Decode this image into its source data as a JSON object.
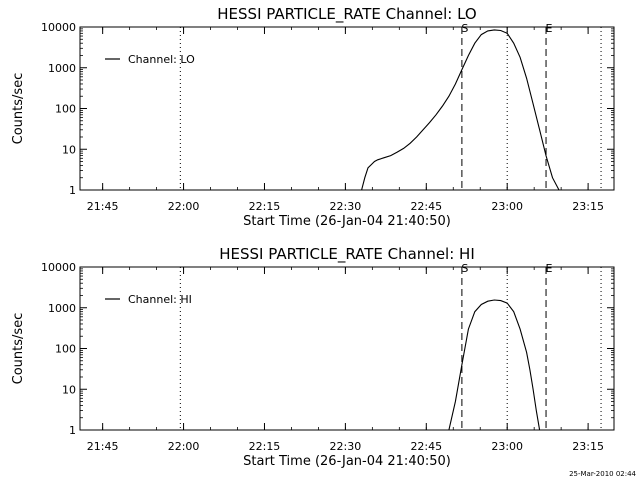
{
  "footer": {
    "timestamp": "25-Mar-2010 02:44"
  },
  "chart_data": [
    {
      "type": "line",
      "title": "HESSI PARTICLE_RATE Channel: LO",
      "xlabel": "Start Time (26-Jan-04 21:40:50)",
      "ylabel": "Counts/sec",
      "y_scale": "log",
      "xlim": [
        21.68,
        23.33
      ],
      "ylim": [
        1,
        10000
      ],
      "x_ticks": [
        "21:45",
        "22:00",
        "22:15",
        "22:30",
        "22:45",
        "23:00",
        "23:15"
      ],
      "x_tick_values": [
        21.75,
        22.0,
        22.25,
        22.5,
        22.75,
        23.0,
        23.25
      ],
      "y_ticks": [
        "1",
        "10",
        "100",
        "1000",
        "10000"
      ],
      "y_tick_values": [
        1,
        10,
        100,
        1000,
        10000
      ],
      "legend": {
        "label": "Channel: LO",
        "position": "top-left"
      },
      "markers": [
        {
          "label": "S",
          "x": 22.86,
          "style": "dashed"
        },
        {
          "label": "E",
          "x": 23.12,
          "style": "dashed"
        },
        {
          "label": "",
          "x": 21.99,
          "style": "dotted"
        },
        {
          "label": "",
          "x": 23.0,
          "style": "dotted"
        },
        {
          "label": "",
          "x": 23.29,
          "style": "dotted"
        }
      ],
      "series": [
        {
          "x": [
            22.55,
            22.56,
            22.57,
            22.58,
            22.59,
            22.6,
            22.62,
            22.64,
            22.66,
            22.68,
            22.7,
            22.72,
            22.74,
            22.76,
            22.78,
            22.8,
            22.82,
            22.84,
            22.86,
            22.88,
            22.9,
            22.92,
            22.94,
            22.96,
            22.98,
            23.0,
            23.02,
            23.04,
            23.06,
            23.08,
            23.1,
            23.12,
            23.14,
            23.16
          ],
          "y": [
            1.0,
            2.0,
            3.5,
            4.2,
            5.0,
            5.5,
            6.2,
            7.0,
            8.5,
            10.5,
            14,
            20,
            30,
            45,
            70,
            115,
            200,
            400,
            900,
            2000,
            4000,
            6500,
            8000,
            8500,
            8200,
            7000,
            4000,
            1800,
            550,
            130,
            30,
            7,
            2,
            1.0
          ]
        }
      ]
    },
    {
      "type": "line",
      "title": "HESSI PARTICLE_RATE Channel: HI",
      "xlabel": "Start Time (26-Jan-04 21:40:50)",
      "ylabel": "Counts/sec",
      "y_scale": "log",
      "xlim": [
        21.68,
        23.33
      ],
      "ylim": [
        1,
        10000
      ],
      "x_ticks": [
        "21:45",
        "22:00",
        "22:15",
        "22:30",
        "22:45",
        "23:00",
        "23:15"
      ],
      "x_tick_values": [
        21.75,
        22.0,
        22.25,
        22.5,
        22.75,
        23.0,
        23.25
      ],
      "y_ticks": [
        "1",
        "10",
        "100",
        "1000",
        "10000"
      ],
      "y_tick_values": [
        1,
        10,
        100,
        1000,
        10000
      ],
      "legend": {
        "label": "Channel: HI",
        "position": "top-left"
      },
      "markers": [
        {
          "label": "S",
          "x": 22.86,
          "style": "dashed"
        },
        {
          "label": "E",
          "x": 23.12,
          "style": "dashed"
        },
        {
          "label": "",
          "x": 21.99,
          "style": "dotted"
        },
        {
          "label": "",
          "x": 23.0,
          "style": "dotted"
        },
        {
          "label": "",
          "x": 23.29,
          "style": "dotted"
        }
      ],
      "series": [
        {
          "x": [
            22.82,
            22.84,
            22.86,
            22.88,
            22.9,
            22.92,
            22.94,
            22.96,
            22.98,
            23.0,
            23.02,
            23.04,
            23.06,
            23.07,
            23.08,
            23.09,
            23.1
          ],
          "y": [
            1.0,
            5,
            40,
            300,
            800,
            1200,
            1450,
            1550,
            1500,
            1300,
            800,
            300,
            80,
            30,
            10,
            3,
            1.0
          ]
        }
      ]
    }
  ]
}
